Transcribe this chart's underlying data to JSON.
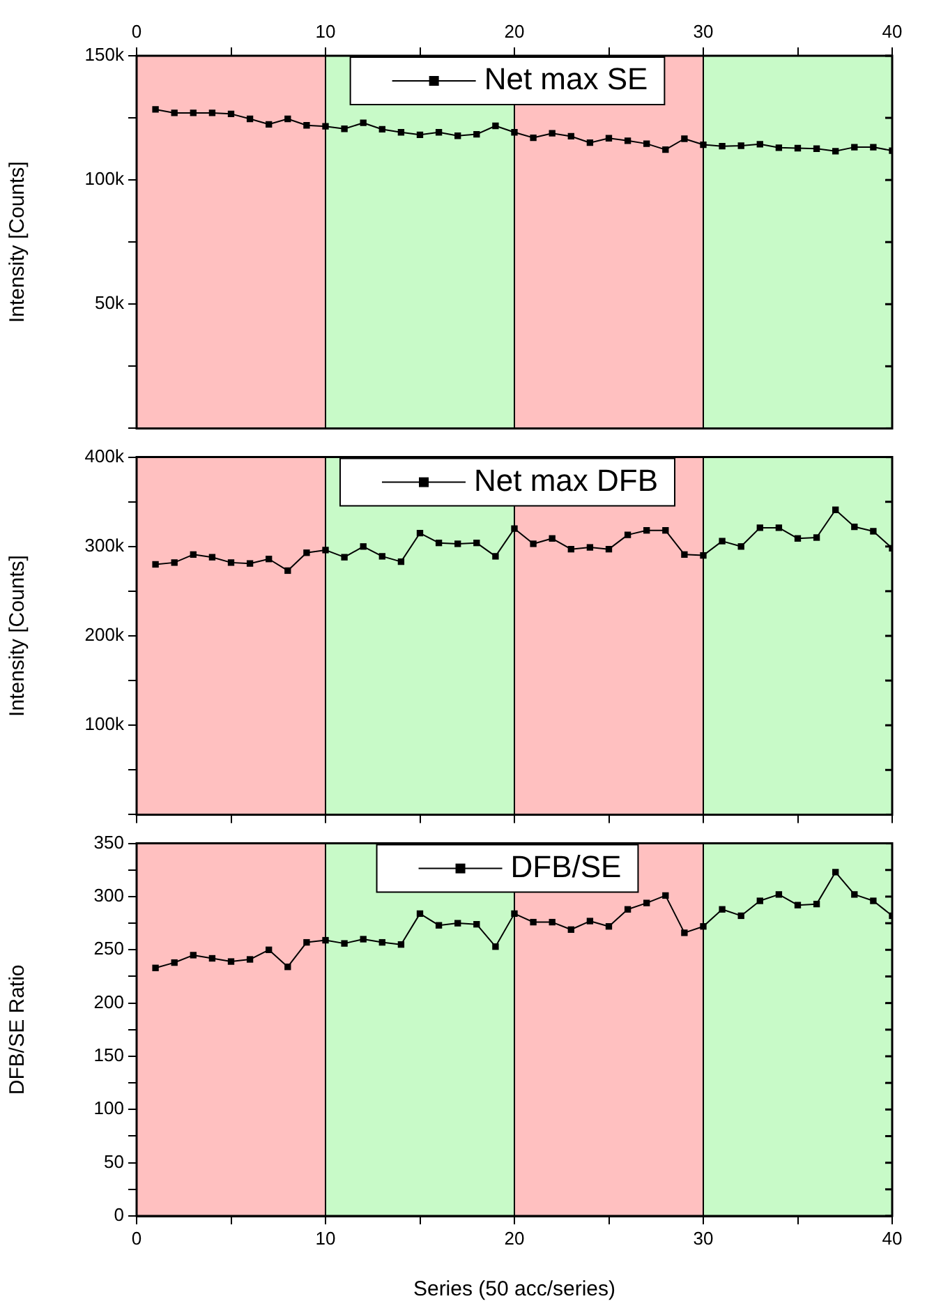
{
  "chart_data": [
    {
      "type": "line",
      "ylabel": "Intensity [Counts]",
      "xlim": [
        0,
        40
      ],
      "xticks": [
        0,
        {
          "value": 5,
          "label": null
        },
        10,
        {
          "value": 15,
          "label": null
        },
        20,
        {
          "value": 25,
          "label": null
        },
        30,
        {
          "value": 35,
          "label": null
        },
        40
      ],
      "ylim": [
        0,
        150000
      ],
      "yticks": [
        {
          "value": 0,
          "label": null
        },
        {
          "value": 25000,
          "label": null
        },
        {
          "value": 50000,
          "label": "50k"
        },
        {
          "value": 75000,
          "label": null
        },
        {
          "value": 100000,
          "label": "100k"
        },
        {
          "value": 125000,
          "label": null
        },
        {
          "value": 150000,
          "label": "150k"
        }
      ],
      "x": [
        1,
        2,
        3,
        4,
        5,
        6,
        7,
        8,
        9,
        10,
        11,
        12,
        13,
        14,
        15,
        16,
        17,
        18,
        19,
        20,
        21,
        22,
        23,
        24,
        25,
        26,
        27,
        28,
        29,
        30,
        31,
        32,
        33,
        34,
        35,
        36,
        37,
        38,
        39,
        40
      ],
      "series": [
        {
          "name": "Net max SE",
          "color": "#000000",
          "values": [
            128400,
            127000,
            127000,
            127000,
            126600,
            124600,
            122400,
            124600,
            122000,
            121600,
            120600,
            123000,
            120400,
            119200,
            118200,
            119200,
            117800,
            118400,
            121800,
            119200,
            117000,
            118800,
            117600,
            115000,
            116800,
            115800,
            114600,
            112200,
            116600,
            114200,
            113600,
            113800,
            114400,
            113000,
            112800,
            112600,
            111600,
            113200,
            113200,
            111800
          ]
        }
      ],
      "bands": [
        {
          "axis": "x",
          "from": 0,
          "to": 10,
          "color": "#ffc0c0"
        },
        {
          "axis": "x",
          "from": 10,
          "to": 20,
          "color": "#c8fac8"
        },
        {
          "axis": "x",
          "from": 20,
          "to": 30,
          "color": "#ffc0c0"
        },
        {
          "axis": "x",
          "from": 30,
          "to": 40,
          "color": "#c8fac8"
        }
      ],
      "grid": false,
      "legend": "top",
      "marker": "square",
      "line_style": "solid"
    },
    {
      "type": "line",
      "ylabel": "Intensity [Counts]",
      "xlim": [
        0,
        40
      ],
      "xticks": [
        0,
        {
          "value": 5,
          "label": null
        },
        10,
        {
          "value": 15,
          "label": null
        },
        20,
        {
          "value": 25,
          "label": null
        },
        30,
        {
          "value": 35,
          "label": null
        },
        40
      ],
      "tick_labels": "y",
      "ylim": [
        0,
        400000
      ],
      "yticks": [
        {
          "value": 0,
          "label": null
        },
        {
          "value": 50000,
          "label": null
        },
        {
          "value": 100000,
          "label": "100k"
        },
        {
          "value": 150000,
          "label": null
        },
        {
          "value": 200000,
          "label": "200k"
        },
        {
          "value": 250000,
          "label": null
        },
        {
          "value": 300000,
          "label": "300k"
        },
        {
          "value": 350000,
          "label": null
        },
        {
          "value": 400000,
          "label": "400k"
        }
      ],
      "x": [
        1,
        2,
        3,
        4,
        5,
        6,
        7,
        8,
        9,
        10,
        11,
        12,
        13,
        14,
        15,
        16,
        17,
        18,
        19,
        20,
        21,
        22,
        23,
        24,
        25,
        26,
        27,
        28,
        29,
        30,
        31,
        32,
        33,
        34,
        35,
        36,
        37,
        38,
        39,
        40
      ],
      "series": [
        {
          "name": "Net max DFB",
          "color": "#000000",
          "values": [
            280000,
            282000,
            291000,
            288000,
            282000,
            281000,
            286000,
            273000,
            293000,
            296000,
            288000,
            300000,
            289000,
            283000,
            315000,
            304000,
            303000,
            304000,
            289000,
            320000,
            303000,
            309000,
            297000,
            299000,
            297000,
            313000,
            318000,
            318000,
            291000,
            290000,
            306000,
            300000,
            321000,
            321000,
            309000,
            310000,
            341000,
            322000,
            317000,
            298000
          ]
        }
      ],
      "bands": [
        {
          "axis": "x",
          "from": 0,
          "to": 10,
          "color": "#ffc0c0"
        },
        {
          "axis": "x",
          "from": 10,
          "to": 20,
          "color": "#c8fac8"
        },
        {
          "axis": "x",
          "from": 20,
          "to": 30,
          "color": "#ffc0c0"
        },
        {
          "axis": "x",
          "from": 30,
          "to": 40,
          "color": "#c8fac8"
        }
      ],
      "grid": false,
      "legend": "top",
      "marker": "square",
      "line_style": "solid"
    },
    {
      "type": "line",
      "ylabel": "DFB/SE Ratio",
      "xlabel": "Series (50 acc/series)",
      "xlim": [
        0,
        40
      ],
      "xticks": [
        0,
        {
          "value": 5,
          "label": null
        },
        10,
        {
          "value": 15,
          "label": null
        },
        20,
        {
          "value": 25,
          "label": null
        },
        30,
        {
          "value": 35,
          "label": null
        },
        40
      ],
      "ylim": [
        0,
        350
      ],
      "yticks": [
        0,
        {
          "value": 25,
          "label": null
        },
        50,
        {
          "value": 75,
          "label": null
        },
        100,
        {
          "value": 125,
          "label": null
        },
        150,
        {
          "value": 175,
          "label": null
        },
        200,
        {
          "value": 225,
          "label": null
        },
        250,
        {
          "value": 275,
          "label": null
        },
        300,
        {
          "value": 325,
          "label": null
        },
        350
      ],
      "x": [
        1,
        2,
        3,
        4,
        5,
        6,
        7,
        8,
        9,
        10,
        11,
        12,
        13,
        14,
        15,
        16,
        17,
        18,
        19,
        20,
        21,
        22,
        23,
        24,
        25,
        26,
        27,
        28,
        29,
        30,
        31,
        32,
        33,
        34,
        35,
        36,
        37,
        38,
        39,
        40
      ],
      "series": [
        {
          "name": "DFB/SE",
          "color": "#000000",
          "values": [
            233,
            238,
            245,
            242,
            239,
            241,
            250,
            234,
            257,
            259,
            256,
            260,
            257,
            255,
            284,
            273,
            275,
            274,
            253,
            284,
            276,
            276,
            269,
            277,
            272,
            288,
            294,
            301,
            266,
            272,
            288,
            282,
            296,
            302,
            292,
            293,
            323,
            302,
            296,
            282
          ]
        }
      ],
      "bands": [
        {
          "axis": "x",
          "from": 0,
          "to": 10,
          "color": "#ffc0c0"
        },
        {
          "axis": "x",
          "from": 10,
          "to": 20,
          "color": "#c8fac8"
        },
        {
          "axis": "x",
          "from": 20,
          "to": 30,
          "color": "#ffc0c0"
        },
        {
          "axis": "x",
          "from": 30,
          "to": 40,
          "color": "#c8fac8"
        }
      ],
      "grid": false,
      "legend": "top",
      "marker": "square",
      "line_style": "solid"
    }
  ]
}
